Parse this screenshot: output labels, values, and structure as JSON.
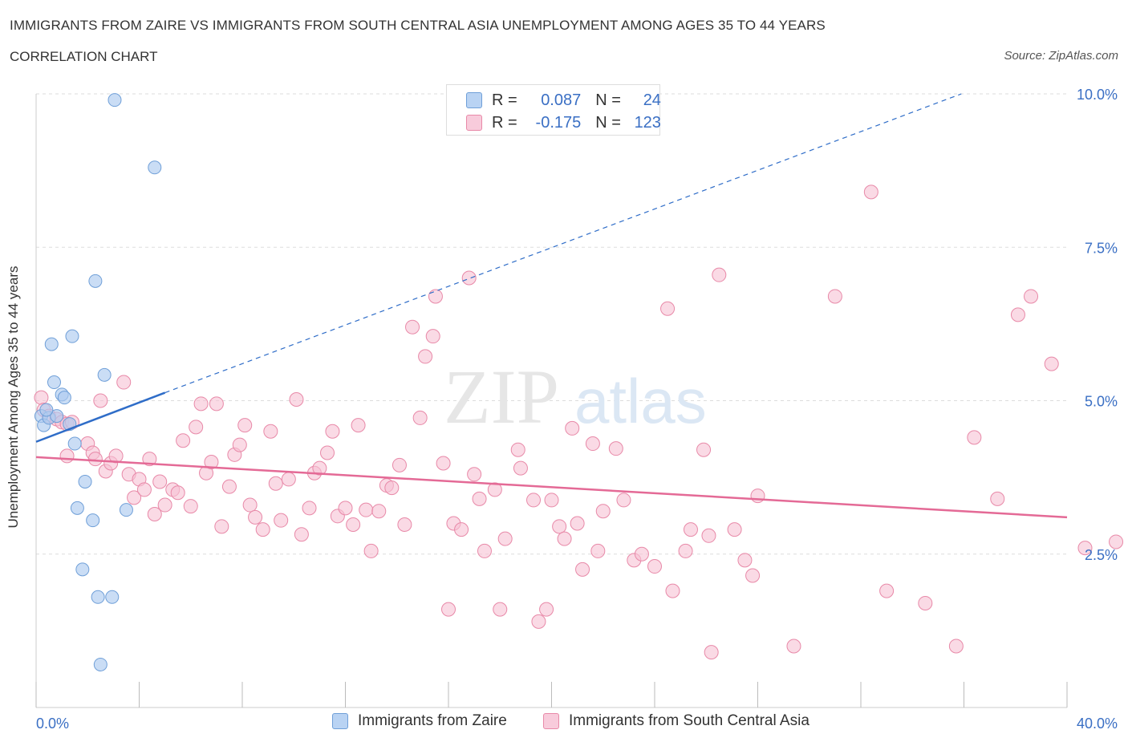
{
  "title": "IMMIGRANTS FROM ZAIRE VS IMMIGRANTS FROM SOUTH CENTRAL ASIA UNEMPLOYMENT AMONG AGES 35 TO 44 YEARS",
  "subtitle": "CORRELATION CHART",
  "source": "Source: ZipAtlas.com",
  "watermark": {
    "zip": "ZIP",
    "atlas": "atlas"
  },
  "legend": {
    "r_label": "R =",
    "n_label": "N =",
    "series": [
      {
        "r": "0.087",
        "n": "24"
      },
      {
        "r": "-0.175",
        "n": "123"
      }
    ]
  },
  "colors": {
    "zaire_fill": "#aecbf0",
    "zaire_stroke": "#6f9fd8",
    "zaire_line": "#2f6dc8",
    "sca_fill": "#f6c2d3",
    "sca_stroke": "#e889a8",
    "sca_line": "#e46a96",
    "axis_text": "#3a6fc4",
    "grid": "#dddddd"
  },
  "chart_data": {
    "type": "scatter",
    "title": "IMMIGRANTS FROM ZAIRE VS IMMIGRANTS FROM SOUTH CENTRAL ASIA UNEMPLOYMENT AMONG AGES 35 TO 44 YEARS",
    "xlabel": "",
    "ylabel": "Unemployment Among Ages 35 to 44 years",
    "xlim": [
      0,
      40
    ],
    "ylim": [
      0,
      10
    ],
    "x_tick_labels": [
      "0.0%",
      "40.0%"
    ],
    "y_ticks": [
      2.5,
      5.0,
      7.5,
      10.0
    ],
    "y_tick_labels": [
      "2.5%",
      "5.0%",
      "7.5%",
      "10.0%"
    ],
    "legend_position": "top-center",
    "series": [
      {
        "name": "Immigrants from Zaire",
        "r": 0.087,
        "n": 24,
        "trend": {
          "x": [
            0,
            5.0
          ],
          "y": [
            4.33,
            5.13
          ],
          "extended_to": [
            35.9,
            10.0
          ]
        },
        "points": [
          [
            0.2,
            4.75
          ],
          [
            0.3,
            4.6
          ],
          [
            0.5,
            4.72
          ],
          [
            0.6,
            5.92
          ],
          [
            0.7,
            5.3
          ],
          [
            0.8,
            4.75
          ],
          [
            1.0,
            5.1
          ],
          [
            1.1,
            5.05
          ],
          [
            1.3,
            4.62
          ],
          [
            1.4,
            6.05
          ],
          [
            1.5,
            4.3
          ],
          [
            1.6,
            3.25
          ],
          [
            1.8,
            2.25
          ],
          [
            1.9,
            3.68
          ],
          [
            2.2,
            3.05
          ],
          [
            2.3,
            6.95
          ],
          [
            2.4,
            1.8
          ],
          [
            2.5,
            0.7
          ],
          [
            2.65,
            5.42
          ],
          [
            2.95,
            1.8
          ],
          [
            3.05,
            9.9
          ],
          [
            3.5,
            3.22
          ],
          [
            4.6,
            8.8
          ],
          [
            0.4,
            4.85
          ]
        ]
      },
      {
        "name": "Immigrants from South Central Asia",
        "r": -0.175,
        "n": 123,
        "trend": {
          "x": [
            0,
            40
          ],
          "y": [
            4.08,
            3.1
          ]
        },
        "points": [
          [
            0.2,
            5.05
          ],
          [
            0.3,
            4.85
          ],
          [
            0.5,
            4.75
          ],
          [
            0.8,
            4.7
          ],
          [
            1.0,
            4.65
          ],
          [
            1.2,
            4.62
          ],
          [
            1.4,
            4.65
          ],
          [
            1.2,
            4.1
          ],
          [
            2.0,
            4.3
          ],
          [
            2.2,
            4.15
          ],
          [
            2.3,
            4.05
          ],
          [
            2.5,
            5.0
          ],
          [
            2.7,
            3.85
          ],
          [
            2.9,
            3.98
          ],
          [
            3.1,
            4.1
          ],
          [
            3.4,
            5.3
          ],
          [
            3.6,
            3.8
          ],
          [
            3.8,
            3.42
          ],
          [
            4.0,
            3.72
          ],
          [
            4.2,
            3.55
          ],
          [
            4.4,
            4.05
          ],
          [
            4.6,
            3.15
          ],
          [
            4.8,
            3.68
          ],
          [
            5.0,
            3.3
          ],
          [
            5.3,
            3.55
          ],
          [
            5.5,
            3.5
          ],
          [
            5.7,
            4.35
          ],
          [
            6.0,
            3.28
          ],
          [
            6.2,
            4.57
          ],
          [
            6.4,
            4.95
          ],
          [
            6.6,
            3.82
          ],
          [
            6.8,
            4.0
          ],
          [
            7.0,
            4.95
          ],
          [
            7.2,
            2.95
          ],
          [
            7.5,
            3.6
          ],
          [
            7.7,
            4.12
          ],
          [
            7.9,
            4.28
          ],
          [
            8.1,
            4.6
          ],
          [
            8.3,
            3.3
          ],
          [
            8.5,
            3.1
          ],
          [
            8.8,
            2.9
          ],
          [
            9.1,
            4.5
          ],
          [
            9.3,
            3.65
          ],
          [
            9.5,
            3.05
          ],
          [
            9.8,
            3.72
          ],
          [
            10.1,
            5.02
          ],
          [
            10.3,
            2.82
          ],
          [
            10.6,
            3.25
          ],
          [
            10.8,
            3.82
          ],
          [
            11.0,
            3.9
          ],
          [
            11.3,
            4.15
          ],
          [
            11.5,
            4.5
          ],
          [
            11.7,
            3.12
          ],
          [
            12.0,
            3.25
          ],
          [
            12.3,
            2.98
          ],
          [
            12.5,
            4.6
          ],
          [
            12.8,
            3.22
          ],
          [
            13.0,
            2.55
          ],
          [
            13.3,
            3.2
          ],
          [
            13.6,
            3.62
          ],
          [
            13.8,
            3.58
          ],
          [
            14.1,
            3.95
          ],
          [
            14.3,
            2.98
          ],
          [
            14.6,
            6.2
          ],
          [
            14.9,
            4.72
          ],
          [
            15.1,
            5.72
          ],
          [
            15.4,
            6.05
          ],
          [
            15.5,
            6.7
          ],
          [
            15.8,
            3.98
          ],
          [
            16.0,
            1.6
          ],
          [
            16.2,
            3.0
          ],
          [
            16.5,
            2.9
          ],
          [
            16.8,
            7.0
          ],
          [
            17.0,
            3.8
          ],
          [
            17.2,
            3.4
          ],
          [
            17.4,
            2.55
          ],
          [
            17.8,
            3.55
          ],
          [
            18.0,
            1.6
          ],
          [
            18.2,
            2.75
          ],
          [
            18.7,
            4.2
          ],
          [
            18.8,
            3.9
          ],
          [
            19.3,
            3.38
          ],
          [
            19.5,
            1.4
          ],
          [
            19.8,
            1.6
          ],
          [
            20.0,
            3.38
          ],
          [
            20.3,
            2.95
          ],
          [
            20.5,
            2.75
          ],
          [
            20.8,
            4.55
          ],
          [
            21.0,
            3.0
          ],
          [
            21.2,
            2.25
          ],
          [
            21.6,
            4.3
          ],
          [
            21.8,
            2.55
          ],
          [
            22.0,
            3.2
          ],
          [
            22.5,
            4.22
          ],
          [
            22.8,
            3.38
          ],
          [
            23.2,
            2.4
          ],
          [
            23.5,
            2.5
          ],
          [
            24.0,
            2.3
          ],
          [
            24.5,
            6.5
          ],
          [
            24.7,
            1.9
          ],
          [
            25.2,
            2.55
          ],
          [
            25.4,
            2.9
          ],
          [
            25.9,
            4.2
          ],
          [
            26.1,
            2.8
          ],
          [
            26.5,
            7.05
          ],
          [
            27.1,
            2.9
          ],
          [
            27.5,
            2.4
          ],
          [
            27.8,
            2.15
          ],
          [
            28.0,
            3.45
          ],
          [
            29.4,
            1.0
          ],
          [
            31.0,
            6.7
          ],
          [
            33.0,
            1.9
          ],
          [
            34.5,
            1.7
          ],
          [
            35.7,
            1.0
          ],
          [
            32.4,
            8.4
          ],
          [
            36.4,
            4.4
          ],
          [
            37.3,
            3.4
          ],
          [
            38.1,
            6.4
          ],
          [
            38.6,
            6.7
          ],
          [
            39.4,
            5.6
          ],
          [
            40.7,
            2.6
          ],
          [
            41.9,
            2.7
          ],
          [
            26.2,
            0.9
          ]
        ]
      }
    ]
  },
  "bottom_legend": [
    "Immigrants from Zaire",
    "Immigrants from South Central Asia"
  ]
}
